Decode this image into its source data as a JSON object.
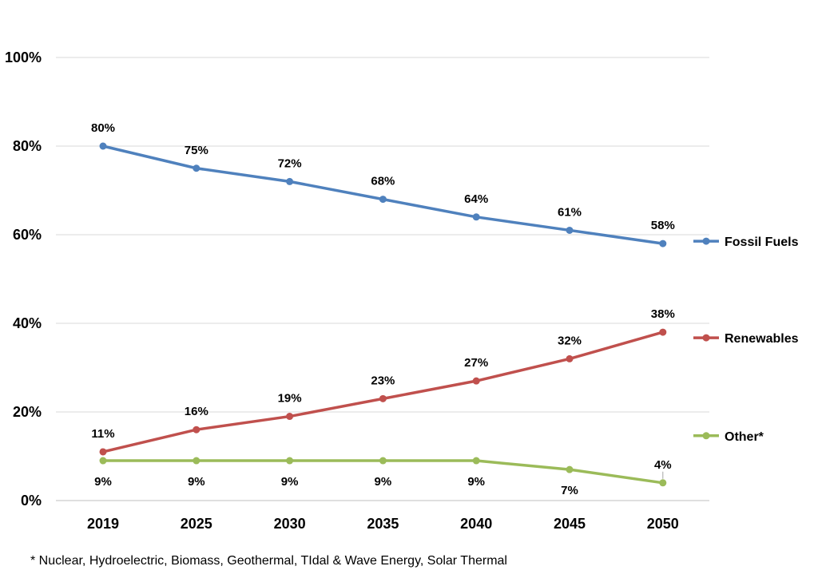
{
  "chart_data": {
    "type": "line",
    "categories": [
      "2019",
      "2025",
      "2030",
      "2035",
      "2040",
      "2045",
      "2050"
    ],
    "ylim": [
      0,
      100
    ],
    "yticks": [
      0,
      20,
      40,
      60,
      80,
      100
    ],
    "ytick_labels": [
      "0%",
      "20%",
      "40%",
      "60%",
      "80%",
      "100%"
    ],
    "grid": true,
    "legend_position": "right",
    "series": [
      {
        "name": "Fossil Fuels",
        "color": "#4F81BD",
        "values": [
          80,
          75,
          72,
          68,
          64,
          61,
          58
        ],
        "labels": [
          "80%",
          "75%",
          "72%",
          "68%",
          "64%",
          "61%",
          "58%"
        ],
        "label_position": "above"
      },
      {
        "name": "Renewables",
        "color": "#C0504D",
        "values": [
          11,
          16,
          19,
          23,
          27,
          32,
          38
        ],
        "labels": [
          "11%",
          "16%",
          "19%",
          "23%",
          "27%",
          "32%",
          "38%"
        ],
        "label_position": "above"
      },
      {
        "name": "Other*",
        "color": "#9BBB59",
        "values": [
          9,
          9,
          9,
          9,
          9,
          7,
          4
        ],
        "labels": [
          "9%",
          "9%",
          "9%",
          "9%",
          "9%",
          "7%",
          "4%"
        ],
        "label_position": "below"
      }
    ]
  },
  "footnote": "* Nuclear, Hydroelectric, Biomass, Geothermal, TIdal & Wave Energy, Solar Thermal"
}
